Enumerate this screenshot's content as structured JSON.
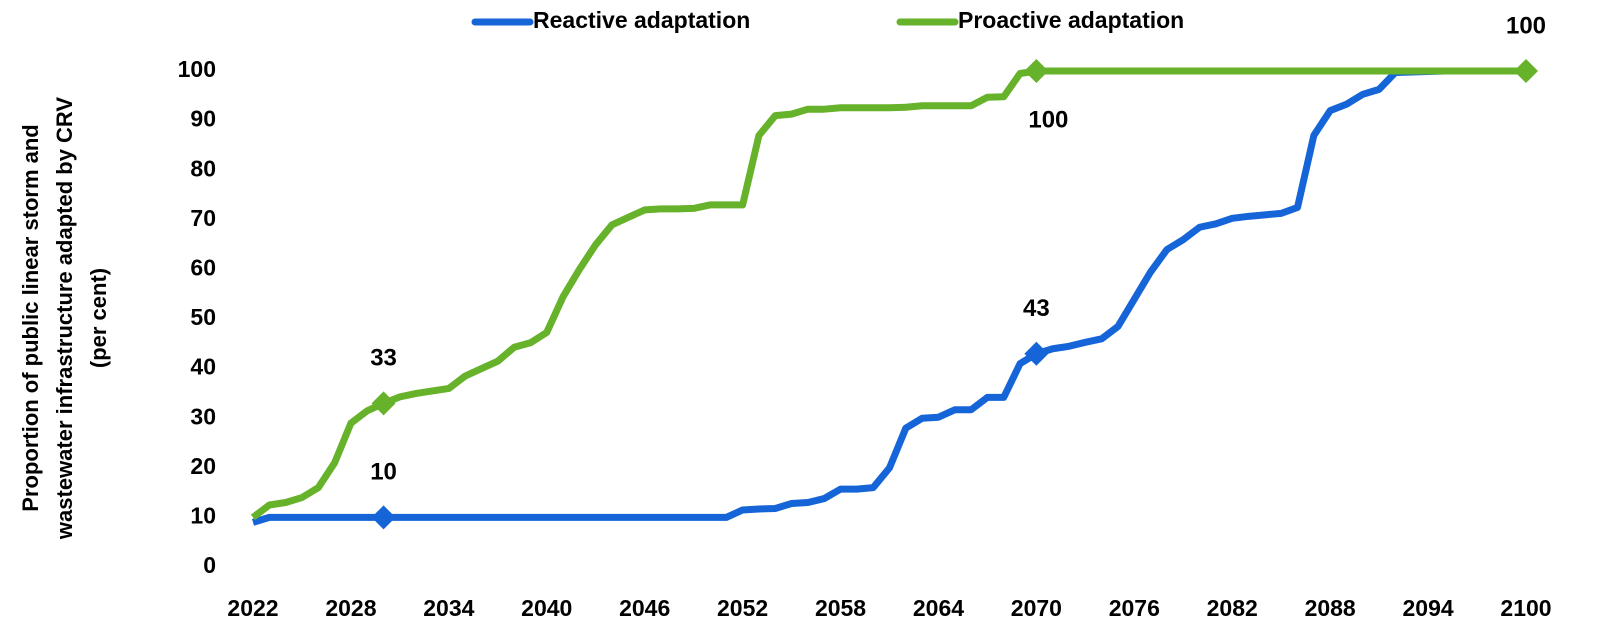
{
  "chart_data": {
    "type": "line",
    "ylabel": [
      "Proportion of public linear storm and",
      "wastewater infrastructure adapted by CRV",
      "(per cent)"
    ],
    "x": [
      2022,
      2023,
      2024,
      2025,
      2026,
      2027,
      2028,
      2029,
      2030,
      2031,
      2032,
      2033,
      2034,
      2035,
      2036,
      2037,
      2038,
      2039,
      2040,
      2041,
      2042,
      2043,
      2044,
      2045,
      2046,
      2047,
      2048,
      2049,
      2050,
      2051,
      2052,
      2053,
      2054,
      2055,
      2056,
      2057,
      2058,
      2059,
      2060,
      2061,
      2062,
      2063,
      2064,
      2065,
      2066,
      2067,
      2068,
      2069,
      2070,
      2071,
      2072,
      2073,
      2074,
      2075,
      2076,
      2077,
      2078,
      2079,
      2080,
      2081,
      2082,
      2083,
      2084,
      2085,
      2086,
      2087,
      2088,
      2089,
      2090,
      2091,
      2092,
      2093,
      2094,
      2095,
      2096,
      2097,
      2098,
      2099,
      2100
    ],
    "series": [
      {
        "name": "Reactive adaptation",
        "color": "#1565d8",
        "values": [
          9,
          10,
          10,
          10,
          10,
          10,
          10,
          10,
          10,
          10,
          10,
          10,
          10,
          10,
          10,
          10,
          10,
          10,
          10,
          10,
          10,
          10,
          10,
          10,
          10,
          10,
          10,
          10,
          10,
          10,
          11.5,
          11.7,
          11.8,
          12.8,
          13,
          13.8,
          15.7,
          15.7,
          16,
          20,
          28,
          30,
          30.2,
          31.7,
          31.7,
          34.2,
          34.2,
          41,
          43,
          44,
          44.5,
          45.3,
          46,
          48.5,
          54,
          59.5,
          64,
          66,
          68.5,
          69.2,
          70.3,
          70.7,
          71,
          71.3,
          72.5,
          87,
          92,
          93.3,
          95.3,
          96.3,
          99.7,
          99.8,
          99.9,
          100,
          100,
          100,
          100,
          100,
          100
        ],
        "value_labels": [
          null,
          null,
          null,
          null,
          null,
          null,
          null,
          null,
          "10",
          null,
          null,
          null,
          null,
          null,
          null,
          null,
          null,
          null,
          null,
          null,
          null,
          null,
          null,
          null,
          null,
          null,
          null,
          null,
          null,
          null,
          null,
          null,
          null,
          null,
          null,
          null,
          null,
          null,
          null,
          null,
          null,
          null,
          null,
          null,
          null,
          null,
          null,
          null,
          "43",
          null,
          null,
          null,
          null,
          null,
          null,
          null,
          null,
          null,
          null,
          null,
          null,
          null,
          null,
          null,
          null,
          null,
          null,
          null,
          null,
          null,
          null,
          null,
          null,
          null,
          null,
          null,
          null,
          null,
          null
        ]
      },
      {
        "name": "Proactive adaptation",
        "color": "#66b22a",
        "values": [
          10,
          12.5,
          13,
          14,
          16,
          21,
          29,
          31.5,
          33,
          34.3,
          35,
          35.5,
          36,
          38.5,
          40,
          41.5,
          44.3,
          45.2,
          47.3,
          54.5,
          60,
          65,
          69,
          70.5,
          72,
          72.2,
          72.2,
          72.3,
          73,
          73,
          73,
          87,
          91,
          91.3,
          92.3,
          92.3,
          92.6,
          92.6,
          92.6,
          92.6,
          92.7,
          93,
          93,
          93,
          93,
          94.7,
          94.8,
          99.5,
          100,
          100,
          100,
          100,
          100,
          100,
          100,
          100,
          100,
          100,
          100,
          100,
          100,
          100,
          100,
          100,
          100,
          100,
          100,
          100,
          100,
          100,
          100,
          100,
          100,
          100,
          100,
          100,
          100,
          100,
          100
        ],
        "value_labels": [
          null,
          null,
          null,
          null,
          null,
          null,
          null,
          null,
          "33",
          null,
          null,
          null,
          null,
          null,
          null,
          null,
          null,
          null,
          null,
          null,
          null,
          null,
          null,
          null,
          null,
          null,
          null,
          null,
          null,
          null,
          null,
          null,
          null,
          null,
          null,
          null,
          null,
          null,
          null,
          null,
          null,
          null,
          null,
          null,
          null,
          null,
          null,
          null,
          "100",
          null,
          null,
          null,
          null,
          null,
          null,
          null,
          null,
          null,
          null,
          null,
          null,
          null,
          null,
          null,
          null,
          null,
          null,
          null,
          null,
          null,
          null,
          null,
          null,
          null,
          null,
          null,
          null,
          null,
          "100"
        ]
      }
    ],
    "xlim": [
      2022,
      2100
    ],
    "xticks": [
      2022,
      2028,
      2034,
      2040,
      2046,
      2052,
      2058,
      2064,
      2070,
      2076,
      2082,
      2088,
      2094,
      2100
    ],
    "ylim": [
      0,
      100
    ],
    "yticks": [
      0,
      10,
      20,
      30,
      40,
      50,
      60,
      70,
      80,
      90,
      100
    ],
    "grid": false,
    "legend": "top"
  }
}
